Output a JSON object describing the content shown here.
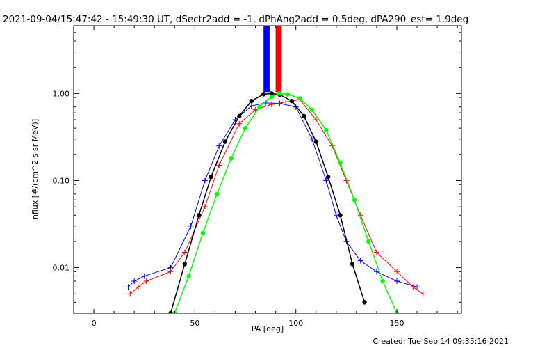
{
  "chart_data": {
    "type": "line",
    "title": "2021-09-04/15:47:42 - 15:49:30 UT, dSectr2add = -1, dPhAng2add = 0.5deg, dPA290_est=  1.9deg",
    "xlabel": "PA [deg]",
    "ylabel": "nflux [#/(cm^2 s sr MeV)]",
    "xlim": [
      -10,
      182
    ],
    "ylim": [
      0.003,
      6
    ],
    "y_scale": "log",
    "x_ticks": [
      0,
      50,
      100,
      150
    ],
    "x_tick_labels": [
      "0",
      "50",
      "100",
      "150"
    ],
    "y_ticks": [
      0.01,
      0.1,
      1.0
    ],
    "y_tick_labels": [
      "0.01",
      "0.10",
      "1.00"
    ],
    "grid": false,
    "legend": "none",
    "series": [
      {
        "color": "#0000ff",
        "marker": "+",
        "x": [
          17,
          20,
          25,
          38,
          48,
          55,
          62,
          70,
          78,
          85,
          92,
          100,
          108,
          115,
          120,
          125,
          132,
          140,
          150,
          160
        ],
        "y": [
          0.006,
          0.007,
          0.008,
          0.01,
          0.03,
          0.1,
          0.25,
          0.5,
          0.72,
          0.78,
          0.77,
          0.7,
          0.3,
          0.1,
          0.04,
          0.02,
          0.012,
          0.009,
          0.007,
          0.006
        ]
      },
      {
        "color": "#ff0000",
        "marker": "+",
        "x": [
          18,
          22,
          26,
          38,
          45,
          55,
          62,
          72,
          80,
          88,
          95,
          102,
          110,
          118,
          125,
          132,
          140,
          150,
          158,
          163
        ],
        "y": [
          0.005,
          0.006,
          0.007,
          0.009,
          0.015,
          0.05,
          0.15,
          0.45,
          0.65,
          0.75,
          0.8,
          0.85,
          0.5,
          0.25,
          0.1,
          0.04,
          0.015,
          0.009,
          0.006,
          0.005
        ]
      },
      {
        "color": "#000000",
        "marker": "filled-circle",
        "x": [
          38,
          45,
          52,
          58,
          65,
          72,
          78,
          84,
          88,
          92,
          98,
          104,
          110,
          116,
          122,
          128,
          134
        ],
        "y": [
          0.003,
          0.011,
          0.04,
          0.11,
          0.28,
          0.55,
          0.82,
          0.98,
          1.0,
          0.97,
          0.82,
          0.55,
          0.28,
          0.11,
          0.04,
          0.011,
          0.004
        ]
      },
      {
        "color": "#00ff00",
        "marker": "filled-circle",
        "x": [
          40,
          47,
          54,
          61,
          68,
          75,
          82,
          88,
          92,
          96,
          102,
          108,
          115,
          122,
          129,
          136,
          143,
          150
        ],
        "y": [
          0.003,
          0.008,
          0.025,
          0.07,
          0.18,
          0.4,
          0.7,
          0.92,
          1.0,
          0.98,
          0.88,
          0.65,
          0.38,
          0.16,
          0.06,
          0.02,
          0.007,
          0.003
        ]
      }
    ],
    "vertical_bars": [
      {
        "color": "#0000ff",
        "x_from": 84,
        "x_to": 87
      },
      {
        "color": "#ff0000",
        "x_from": 90,
        "x_to": 93
      }
    ],
    "footer": "Created: Tue Sep 14 09:35:16 2021"
  }
}
